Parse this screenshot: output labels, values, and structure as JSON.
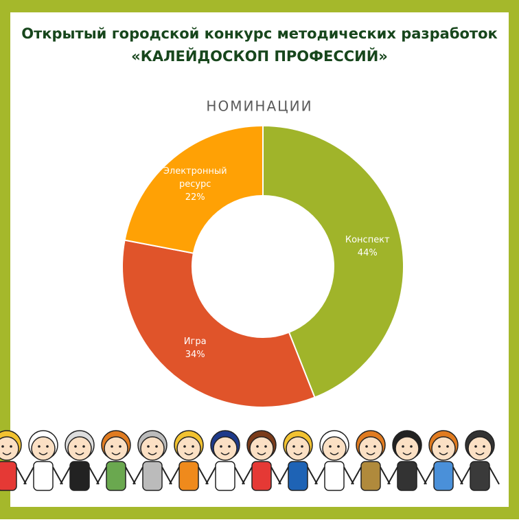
{
  "header": {
    "title": [
      "Открытый городской конкурс методических разработок",
      "«КАЛЕЙДОСКОП ПРОФЕССИЙ»"
    ]
  },
  "chart_data": {
    "type": "donut",
    "title": "НОМИНАЦИИ",
    "categories": [
      "Конспект",
      "Игра",
      "Электронный ресурс"
    ],
    "values": [
      44,
      34,
      22
    ],
    "value_labels": [
      "44%",
      "34%",
      "22%"
    ],
    "colors": [
      "#a0b42a",
      "#e0542a",
      "#ffa105"
    ]
  }
}
